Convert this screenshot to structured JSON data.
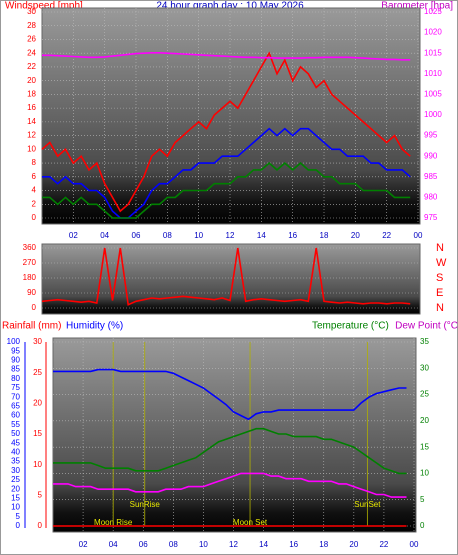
{
  "chart_data": [
    {
      "type": "line",
      "title": "24 hour graph day : 10 May 2026",
      "y_label": "Windspeed [mph]",
      "y2_label": "Barometer [hpa]",
      "x": [
        0,
        0.5,
        1,
        1.5,
        2,
        2.5,
        3,
        3.5,
        4,
        4.5,
        5,
        5.5,
        6,
        6.5,
        7,
        7.5,
        8,
        8.5,
        9,
        9.5,
        10,
        10.5,
        11,
        11.5,
        12,
        12.5,
        13,
        13.5,
        14,
        14.5,
        15,
        15.5,
        16,
        16.5,
        17,
        17.5,
        18,
        18.5,
        19,
        19.5,
        20,
        20.5,
        21,
        21.5,
        22,
        22.5,
        23,
        23.5
      ],
      "xlim": [
        0,
        24
      ],
      "xticks": [
        {
          "value": 2,
          "label": "02"
        },
        {
          "value": 4,
          "label": "04"
        },
        {
          "value": 6,
          "label": "06"
        },
        {
          "value": 8,
          "label": "08"
        },
        10,
        12,
        14,
        16,
        18,
        20,
        22,
        {
          "value": 24,
          "label": "00"
        }
      ],
      "ylim": [
        0,
        30
      ],
      "yticks": [
        0,
        2,
        4,
        6,
        8,
        10,
        12,
        14,
        16,
        18,
        20,
        22,
        24,
        26,
        28,
        30
      ],
      "y2lim": [
        975,
        1025
      ],
      "y2ticks": [
        975,
        980,
        985,
        990,
        995,
        1000,
        1005,
        1010,
        1015,
        1020,
        1025
      ],
      "grid": true,
      "series": [
        {
          "color": "#ff0000",
          "values": [
            10,
            11,
            9,
            10,
            8,
            9,
            7,
            8,
            5,
            3,
            1,
            2,
            4,
            6,
            9,
            10,
            9,
            11,
            12,
            13,
            14,
            13,
            15,
            16,
            17,
            16,
            18,
            20,
            22,
            24,
            21,
            23,
            20,
            22,
            21,
            19,
            20,
            18,
            17,
            16,
            15,
            14,
            13,
            12,
            11,
            12,
            10,
            9
          ]
        },
        {
          "color": "#0000ff",
          "values": [
            6,
            6,
            5,
            6,
            5,
            5,
            4,
            4,
            3,
            1,
            0,
            0,
            1,
            2,
            4,
            5,
            5,
            6,
            7,
            7,
            8,
            8,
            8,
            9,
            9,
            9,
            10,
            11,
            12,
            13,
            12,
            13,
            12,
            13,
            13,
            12,
            11,
            10,
            10,
            9,
            9,
            9,
            8,
            8,
            7,
            7,
            7,
            6
          ]
        },
        {
          "color": "#008000",
          "values": [
            3,
            3,
            2,
            3,
            2,
            3,
            2,
            2,
            1,
            0,
            0,
            0,
            0,
            1,
            2,
            2,
            3,
            3,
            4,
            4,
            4,
            4,
            5,
            5,
            5,
            6,
            6,
            7,
            7,
            8,
            7,
            8,
            7,
            8,
            7,
            7,
            6,
            6,
            5,
            5,
            5,
            4,
            4,
            4,
            4,
            3,
            3,
            3
          ]
        },
        {
          "color": "#ff00ff",
          "axis": "y2",
          "values": [
            1014.5,
            1014.5,
            1014.4,
            1014.3,
            1014.2,
            1014.1,
            1014.0,
            1014.0,
            1014.1,
            1014.3,
            1014.5,
            1014.7,
            1014.9,
            1015.0,
            1015.1,
            1015.1,
            1015.0,
            1014.9,
            1014.8,
            1014.7,
            1014.6,
            1014.5,
            1014.4,
            1014.3,
            1014.2,
            1014.1,
            1014.0,
            1014.0,
            1013.9,
            1013.9,
            1013.8,
            1013.8,
            1013.8,
            1013.8,
            1013.9,
            1013.9,
            1014.0,
            1014.0,
            1014.0,
            1014.0,
            1013.9,
            1013.8,
            1013.7,
            1013.6,
            1013.5,
            1013.5,
            1013.4,
            1013.4
          ]
        }
      ]
    },
    {
      "type": "line",
      "x": [
        0,
        0.5,
        1,
        1.5,
        2,
        2.5,
        3,
        3.5,
        4,
        4.5,
        5,
        5.5,
        6,
        6.5,
        7,
        7.5,
        8,
        8.5,
        9,
        9.5,
        10,
        10.5,
        11,
        11.5,
        12,
        12.5,
        13,
        13.5,
        14,
        14.5,
        15,
        15.5,
        16,
        16.5,
        17,
        17.5,
        18,
        18.5,
        19,
        19.5,
        20,
        20.5,
        21,
        21.5,
        22,
        22.5,
        23,
        23.5
      ],
      "xlim": [
        0,
        24
      ],
      "ylim": [
        0,
        360
      ],
      "yticks": [
        0,
        90,
        180,
        270,
        360
      ],
      "y2lim": [
        0,
        360
      ],
      "y2ticks": [
        {
          "value": 0,
          "label": "N"
        },
        {
          "value": 90,
          "label": "E"
        },
        {
          "value": 180,
          "label": "S"
        },
        {
          "value": 270,
          "label": "W"
        },
        {
          "value": 360,
          "label": "N"
        }
      ],
      "series": [
        {
          "color": "#ff0000",
          "values": [
            40,
            45,
            50,
            45,
            40,
            35,
            40,
            30,
            360,
            45,
            360,
            20,
            40,
            50,
            60,
            55,
            60,
            65,
            70,
            65,
            60,
            55,
            50,
            60,
            45,
            360,
            40,
            50,
            55,
            50,
            45,
            40,
            45,
            50,
            40,
            360,
            40,
            35,
            30,
            35,
            30,
            25,
            30,
            30,
            25,
            30,
            30,
            25
          ]
        }
      ]
    },
    {
      "type": "line",
      "rain_label": "Rainfall (mm)",
      "humidity_label": "Humidity (%)",
      "temp_label": "Temperature (°C)",
      "dew_label": "Dew Point (°C",
      "x": [
        0,
        0.5,
        1,
        1.5,
        2,
        2.5,
        3,
        3.5,
        4,
        4.5,
        5,
        5.5,
        6,
        6.5,
        7,
        7.5,
        8,
        8.5,
        9,
        9.5,
        10,
        10.5,
        11,
        11.5,
        12,
        12.5,
        13,
        13.5,
        14,
        14.5,
        15,
        15.5,
        16,
        16.5,
        17,
        17.5,
        18,
        18.5,
        19,
        19.5,
        20,
        20.5,
        21,
        21.5,
        22,
        22.5,
        23,
        23.5
      ],
      "xlim": [
        0,
        24
      ],
      "xticks": [
        {
          "value": 2,
          "label": "02"
        },
        {
          "value": 4,
          "label": "04"
        },
        {
          "value": 6,
          "label": "06"
        },
        {
          "value": 8,
          "label": "08"
        },
        10,
        12,
        14,
        16,
        18,
        20,
        22,
        {
          "value": 24,
          "label": "00"
        }
      ],
      "ylim": [
        0,
        100
      ],
      "yticks": [
        0,
        5,
        10,
        15,
        20,
        25,
        30,
        35,
        40,
        45,
        50,
        55,
        60,
        65,
        70,
        75,
        80,
        85,
        90,
        95,
        100
      ],
      "y3lim": [
        0,
        30
      ],
      "y3ticks": [
        0,
        5,
        10,
        15,
        20,
        25,
        30
      ],
      "y2lim": [
        0,
        35
      ],
      "y2ticks": [
        0,
        5,
        10,
        15,
        20,
        25,
        30,
        35
      ],
      "grid": true,
      "series": [
        {
          "color": "#ff0000",
          "axis": "y3",
          "values": [
            0,
            0,
            0,
            0,
            0,
            0,
            0,
            0,
            0,
            0,
            0,
            0,
            0,
            0,
            0,
            0,
            0,
            0,
            0,
            0,
            0,
            0,
            0,
            0,
            0,
            0,
            0,
            0,
            0,
            0,
            0,
            0,
            0,
            0,
            0,
            0,
            0,
            0,
            0,
            0,
            0,
            0,
            0,
            0,
            0,
            0,
            0,
            0
          ]
        },
        {
          "color": "#0000ff",
          "values": [
            84,
            84,
            84,
            84,
            84,
            84,
            85,
            85,
            85,
            84,
            84,
            84,
            84,
            84,
            84,
            84,
            83,
            81,
            79,
            77,
            75,
            72,
            69,
            66,
            62,
            60,
            58,
            61,
            62,
            62,
            63,
            63,
            63,
            63,
            63,
            63,
            63,
            63,
            63,
            63,
            63,
            67,
            70,
            72,
            73,
            74,
            75,
            75
          ]
        },
        {
          "color": "#008000",
          "axis": "y2",
          "values": [
            12,
            12,
            12,
            12,
            12,
            12,
            11.5,
            11,
            11,
            11,
            11,
            10.5,
            10.5,
            10.5,
            10.5,
            11,
            11.5,
            12,
            12.5,
            13,
            14,
            15,
            16,
            16.5,
            17,
            17.5,
            18,
            18.5,
            18.5,
            18,
            17.5,
            17.5,
            17,
            17,
            17,
            17,
            16.5,
            16.5,
            16,
            15.5,
            15,
            14,
            13,
            12,
            11,
            10.5,
            10,
            10
          ]
        },
        {
          "color": "#ff00ff",
          "axis": "y2",
          "values": [
            8,
            8,
            8,
            7.5,
            7.5,
            7.5,
            7,
            7,
            7,
            7,
            7,
            6.5,
            6.5,
            6.5,
            6.5,
            7,
            7,
            7,
            7.5,
            7.5,
            7.5,
            8,
            8.5,
            9,
            9.5,
            10,
            10,
            10,
            10,
            9.5,
            9.5,
            9,
            9,
            9,
            8.5,
            8.5,
            8.5,
            8.5,
            8,
            8,
            7.5,
            7,
            6.5,
            6,
            6,
            5.5,
            5.5,
            5.5
          ]
        }
      ],
      "annotations": [
        {
          "text": "Moon Rise",
          "x": 4.0
        },
        {
          "text": "SunRise",
          "x": 6.1
        },
        {
          "text": "Moon Set",
          "x": 13.1
        },
        {
          "text": "SunSet",
          "x": 20.9
        }
      ]
    }
  ]
}
